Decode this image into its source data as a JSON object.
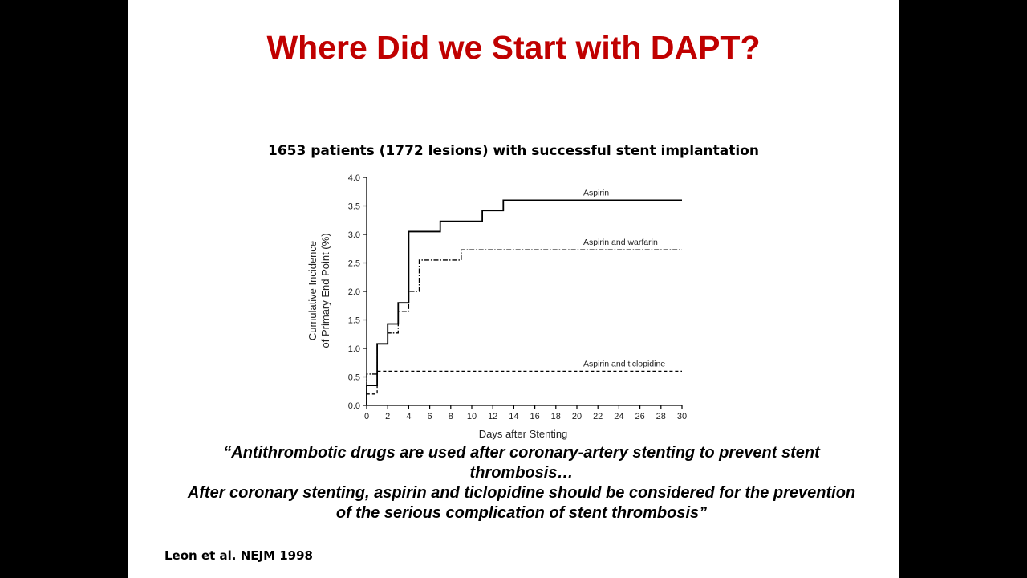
{
  "slide": {
    "title": "Where Did we Start with DAPT?",
    "title_color": "#c00000",
    "subtitle": "1653 patients (1772 lesions) with successful stent implantation",
    "quote_line1": "“Antithrombotic drugs are used after coronary-artery stenting to prevent stent thrombosis…",
    "quote_line2": "After coronary stenting, aspirin and ticlopidine should be considered for the prevention of the serious complication of stent thrombosis”",
    "citation": "Leon et al. NEJM 1998"
  },
  "chart_data": {
    "type": "line",
    "xlabel": "Days after Stenting",
    "ylabel_line1": "Cumulative Incidence",
    "ylabel_line2": "of Primary End Point (%)",
    "xlim": [
      0,
      30
    ],
    "ylim": [
      0,
      4.0
    ],
    "x_ticks": [
      0,
      2,
      4,
      6,
      8,
      10,
      12,
      14,
      16,
      18,
      20,
      22,
      24,
      26,
      28,
      30
    ],
    "y_ticks": [
      "0.0",
      "0.5",
      "1.0",
      "1.5",
      "2.0",
      "2.5",
      "3.0",
      "3.5",
      "4.0"
    ],
    "grid": false,
    "series": [
      {
        "name": "Aspirin",
        "style": "solid",
        "steps": [
          [
            0,
            0.35
          ],
          [
            1,
            1.08
          ],
          [
            2,
            1.43
          ],
          [
            3,
            1.8
          ],
          [
            4,
            3.05
          ],
          [
            7,
            3.23
          ],
          [
            11,
            3.42
          ],
          [
            13,
            3.6
          ],
          [
            30,
            3.6
          ]
        ]
      },
      {
        "name": "Aspirin and warfarin",
        "style": "dashdot",
        "steps": [
          [
            0,
            0.55
          ],
          [
            1,
            1.08
          ],
          [
            2,
            1.27
          ],
          [
            3,
            1.65
          ],
          [
            4,
            2.0
          ],
          [
            5,
            2.55
          ],
          [
            9,
            2.73
          ],
          [
            30,
            2.73
          ]
        ]
      },
      {
        "name": "Aspirin and ticlopidine",
        "style": "dashed",
        "steps": [
          [
            0,
            0.2
          ],
          [
            1,
            0.6
          ],
          [
            30,
            0.6
          ]
        ]
      }
    ]
  }
}
